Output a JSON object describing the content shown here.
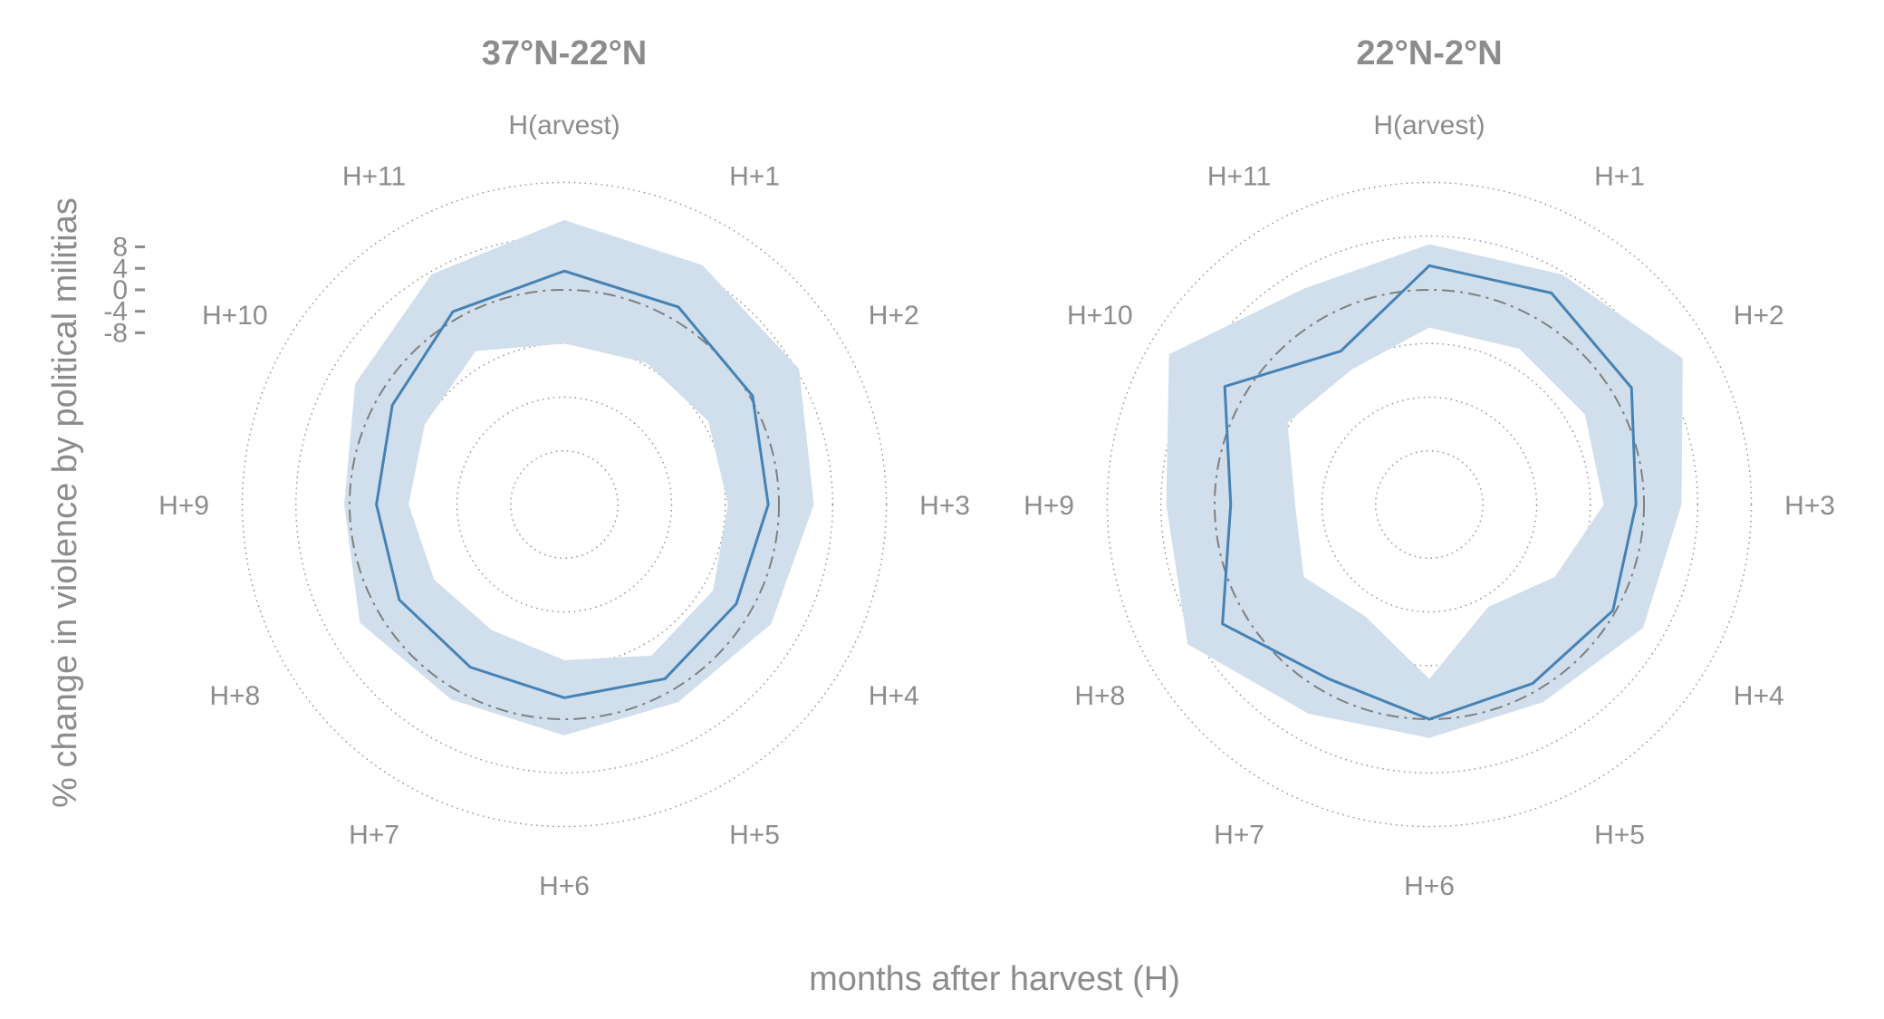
{
  "chart_data": [
    {
      "type": "line",
      "subtype": "polar",
      "title": "37°N-22°N",
      "x": [
        "H(arvest)",
        "H+1",
        "H+2",
        "H+3",
        "H+4",
        "H+5",
        "H+6",
        "H+7",
        "H+8",
        "H+9",
        "H+10",
        "H+11"
      ],
      "series": [
        {
          "values": [
            3.5,
            2.5,
            0.5,
            -2,
            -3,
            -2.5,
            -4,
            -5,
            -4.5,
            -5,
            -3,
            1.5
          ],
          "lower": [
            -10,
            -9.5,
            -9,
            -9.5,
            -8,
            -7.5,
            -11,
            -13,
            -12,
            -11,
            -10,
            -7
          ],
          "upper": [
            13,
            11.5,
            10.5,
            6.5,
            4.5,
            2.5,
            3,
            2,
            4,
            1,
            5,
            9.5
          ]
        }
      ],
      "reference": 0,
      "yticks": [
        8,
        4,
        0,
        -4,
        -8
      ],
      "rlim": [
        -40,
        14
      ]
    },
    {
      "type": "line",
      "subtype": "polar",
      "title": "22°N-2°N",
      "x": [
        "H(arvest)",
        "H+1",
        "H+2",
        "H+3",
        "H+4",
        "H+5",
        "H+6",
        "H+7",
        "H+8",
        "H+9",
        "H+10",
        "H+11"
      ],
      "series": [
        {
          "values": [
            4.5,
            5.5,
            3.5,
            -1.5,
            -0.5,
            -1.5,
            0,
            -2.5,
            4.5,
            -3,
            4,
            -7
          ],
          "lower": [
            -7,
            -6.5,
            -6.5,
            -7.5,
            -13,
            -18,
            -7.5,
            -16,
            -13,
            -15,
            -9.5,
            -11
          ],
          "upper": [
            8.5,
            9.5,
            14.5,
            7,
            6,
            2.5,
            3.5,
            5,
            12,
            9,
            16,
            6.5
          ]
        }
      ],
      "reference": 0,
      "yticks": [
        8,
        4,
        0,
        -4,
        -8
      ],
      "rlim": [
        -40,
        14
      ]
    }
  ],
  "ylabel": "% change in violence by political militias",
  "xlabel": "months after harvest (H)",
  "colors": {
    "line": "#4682b4",
    "band": "#d1dfec",
    "text": "#8c8c8c",
    "grid": "#8c8c8c",
    "reference": "#7f7f7f"
  }
}
